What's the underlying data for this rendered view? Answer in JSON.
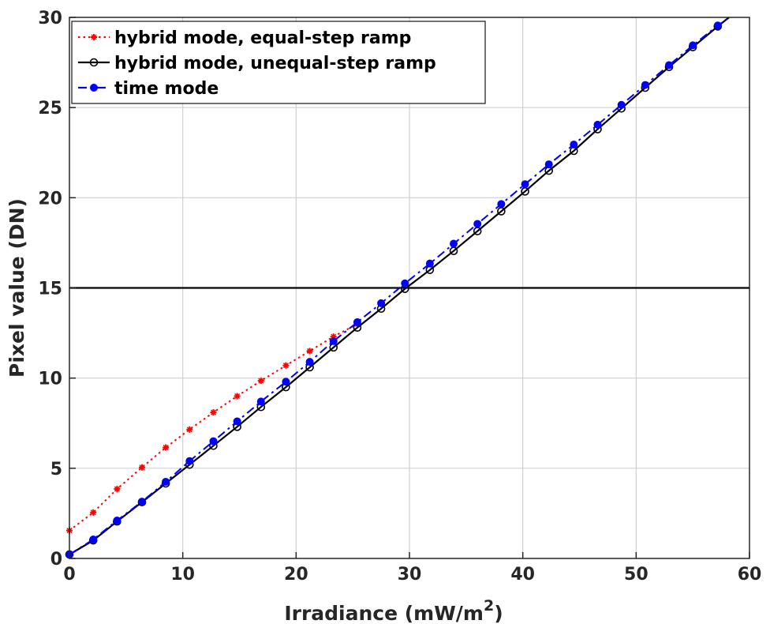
{
  "chart_data": {
    "type": "line",
    "xlabel": "Irradiance (mW/m",
    "xlabel_sup": "2",
    "xlabel_end": ")",
    "ylabel": "Pixel value (DN)",
    "xlim": [
      0,
      60
    ],
    "ylim": [
      0,
      30
    ],
    "xticks": [
      0,
      10,
      20,
      30,
      40,
      50,
      60
    ],
    "yticks": [
      0,
      5,
      10,
      15,
      20,
      25,
      30
    ],
    "grid": true,
    "reference_line": {
      "y": 15,
      "color": "#000000"
    },
    "legend_position": "top-left",
    "series": [
      {
        "name": "hybrid mode, equal-step ramp",
        "color": "#ff0000",
        "line_style": "dotted",
        "marker": "star",
        "x": [
          0,
          2.1,
          4.2,
          6.4,
          8.5,
          10.6,
          12.7,
          14.8,
          16.9,
          19.1,
          21.2,
          23.3,
          25.4
        ],
        "y": [
          1.55,
          2.55,
          3.85,
          5.05,
          6.15,
          7.15,
          8.1,
          9.0,
          9.85,
          10.7,
          11.5,
          12.3,
          13.0
        ]
      },
      {
        "name": "hybrid mode, unequal-step ramp",
        "color": "#000000",
        "line_style": "solid",
        "marker": "circle-open",
        "x": [
          0,
          2.1,
          4.2,
          6.4,
          8.5,
          10.6,
          12.7,
          14.8,
          16.9,
          19.1,
          21.2,
          23.3,
          25.4,
          27.5,
          29.6,
          31.8,
          33.9,
          36.0,
          38.1,
          40.2,
          42.3,
          44.5,
          46.6,
          48.7,
          50.8,
          52.9,
          55.0,
          57.2,
          58.2
        ],
        "y": [
          0.22,
          1.0,
          2.05,
          3.12,
          4.16,
          5.2,
          6.25,
          7.3,
          8.4,
          9.5,
          10.6,
          11.7,
          12.8,
          13.85,
          14.95,
          16.0,
          17.05,
          18.15,
          19.25,
          20.35,
          21.5,
          22.6,
          23.8,
          24.95,
          26.1,
          27.25,
          28.35,
          29.5,
          30.0
        ]
      },
      {
        "name": "time mode",
        "color": "#0000ff",
        "line_style": "dashdot",
        "marker": "dot",
        "x": [
          0,
          2.1,
          4.2,
          6.4,
          8.5,
          10.6,
          12.7,
          14.8,
          16.9,
          19.1,
          21.2,
          23.3,
          25.4,
          27.5,
          29.6,
          31.8,
          33.9,
          36.0,
          38.1,
          40.2,
          42.3,
          44.5,
          46.6,
          48.7,
          50.8,
          52.9,
          55.0,
          57.2,
          58.2
        ],
        "y": [
          0.22,
          1.05,
          2.1,
          3.15,
          4.25,
          5.4,
          6.5,
          7.6,
          8.7,
          9.8,
          10.9,
          12.05,
          13.1,
          14.15,
          15.25,
          16.35,
          17.45,
          18.55,
          19.65,
          20.75,
          21.85,
          22.95,
          24.05,
          25.15,
          26.25,
          27.35,
          28.45,
          29.55,
          30.0
        ]
      }
    ]
  }
}
